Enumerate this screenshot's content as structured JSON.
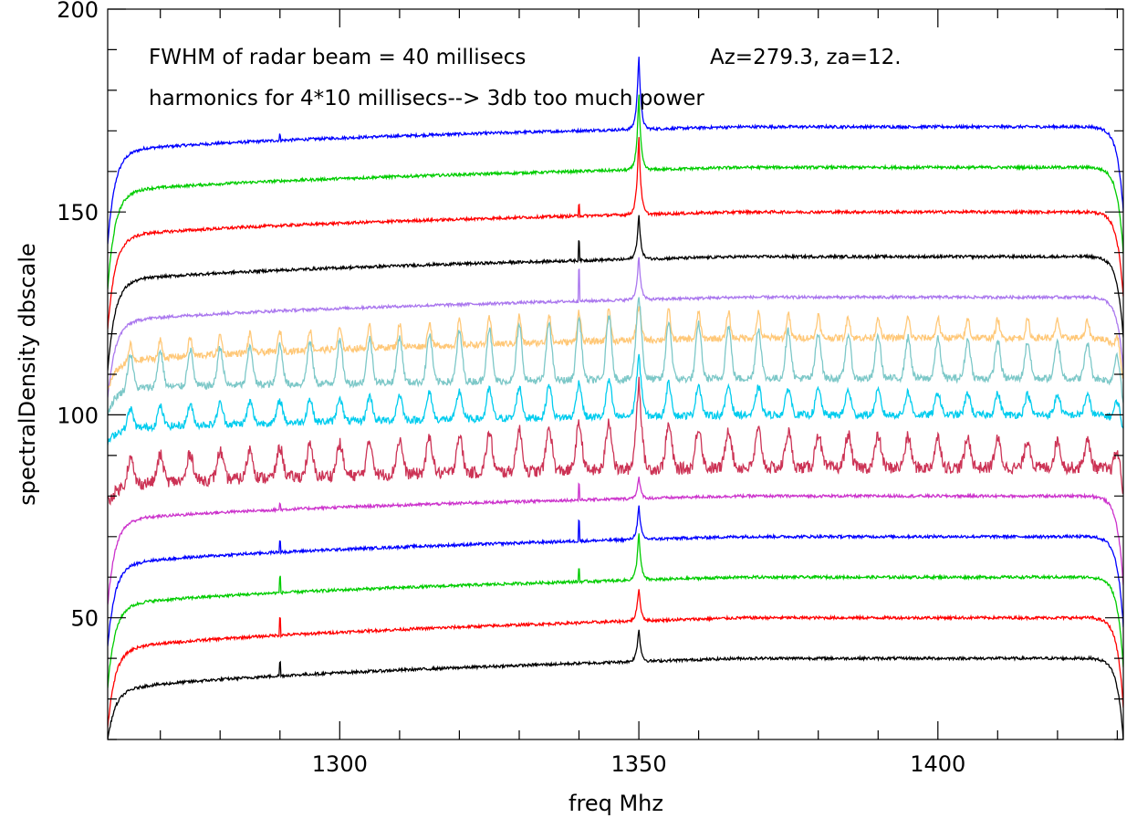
{
  "chart_data": {
    "type": "line",
    "title": "",
    "xlabel": "freq Mhz",
    "ylabel": "spectralDensity dbscale",
    "xlim": [
      1261.2,
      1431.0
    ],
    "ylim": [
      20,
      200
    ],
    "x_ticks": [
      1300,
      1350,
      1400
    ],
    "x_tick_labels": [
      "1300",
      "1350",
      "1400"
    ],
    "y_ticks": [
      50,
      100,
      150,
      200
    ],
    "y_tick_labels": [
      "50",
      "100",
      "150",
      "200"
    ],
    "x_minor_step": 10,
    "y_minor_step": 10,
    "grid": false,
    "annotations": [
      "FWHM of radar beam = 40 millisecs",
      "Az=279.3, za=12.",
      "harmonics for 4*10 millisecs--> 3db too much power"
    ],
    "series": [
      {
        "color": "#0000ff",
        "baseline_start": 164,
        "baseline_end": 171,
        "edge_low": 142,
        "edge_high": 150,
        "center_peak": 190,
        "harmonic_peak_height": 0,
        "harmonic_width": 0,
        "noise": 0.35,
        "spurs": [
          [
            1290,
            169
          ]
        ]
      },
      {
        "color": "#00cc00",
        "baseline_start": 154,
        "baseline_end": 161,
        "edge_low": 131,
        "edge_high": 140,
        "center_peak": 180,
        "harmonic_peak_height": 0,
        "harmonic_width": 0,
        "noise": 0.35,
        "spurs": []
      },
      {
        "color": "#ff0000",
        "baseline_start": 143,
        "baseline_end": 150,
        "edge_low": 121,
        "edge_high": 129,
        "center_peak": 170,
        "harmonic_peak_height": 0,
        "harmonic_width": 0,
        "noise": 0.35,
        "spurs": [
          [
            1340,
            152
          ]
        ]
      },
      {
        "color": "#000000",
        "baseline_start": 132,
        "baseline_end": 139,
        "edge_low": 111,
        "edge_high": 119,
        "center_peak": 150,
        "harmonic_peak_height": 0,
        "harmonic_width": 0,
        "noise": 0.35,
        "spurs": [
          [
            1340,
            143
          ]
        ]
      },
      {
        "color": "#aa77ee",
        "baseline_start": 122,
        "baseline_end": 129,
        "edge_low": 104,
        "edge_high": 111,
        "center_peak": 140,
        "harmonic_peak_height": 0,
        "harmonic_width": 0,
        "noise": 0.35,
        "spurs": [
          [
            1340,
            136
          ]
        ]
      },
      {
        "color": "#ffc878",
        "baseline_start": 112,
        "baseline_end": 119,
        "edge_low": 106,
        "edge_high": 109,
        "center_peak": 126,
        "harmonic_peak_height": 8,
        "harmonic_width": 0.6,
        "noise": 0.8,
        "spurs": []
      },
      {
        "color": "#7dc8c8",
        "baseline_start": 106,
        "baseline_end": 109,
        "edge_low": 100,
        "edge_high": 102,
        "center_peak": 130,
        "harmonic_peak_height": 16,
        "harmonic_width": 0.9,
        "noise": 0.9,
        "spurs": []
      },
      {
        "color": "#00ccee",
        "baseline_start": 96,
        "baseline_end": 100,
        "edge_low": 93,
        "edge_high": 96,
        "center_peak": 115,
        "harmonic_peak_height": 9,
        "harmonic_width": 0.9,
        "noise": 0.9,
        "spurs": []
      },
      {
        "color": "#cc3355",
        "baseline_start": 82,
        "baseline_end": 87,
        "edge_low": 78,
        "edge_high": 80,
        "center_peak": 110,
        "harmonic_peak_height": 12,
        "harmonic_width": 1.0,
        "noise": 1.5,
        "spurs": []
      },
      {
        "color": "#cc33cc",
        "baseline_start": 73,
        "baseline_end": 80,
        "edge_low": 53,
        "edge_high": 58,
        "center_peak": 85,
        "harmonic_peak_height": 0,
        "harmonic_width": 0,
        "noise": 0.35,
        "spurs": [
          [
            1290,
            78
          ],
          [
            1340,
            83
          ]
        ]
      },
      {
        "color": "#0000ff",
        "baseline_start": 62,
        "baseline_end": 70,
        "edge_low": 43,
        "edge_high": 48,
        "center_peak": 78,
        "harmonic_peak_height": 0,
        "harmonic_width": 0,
        "noise": 0.35,
        "spurs": [
          [
            1290,
            69
          ],
          [
            1340,
            74
          ]
        ]
      },
      {
        "color": "#00cc00",
        "baseline_start": 52,
        "baseline_end": 60,
        "edge_low": 33,
        "edge_high": 38,
        "center_peak": 72,
        "harmonic_peak_height": 0,
        "harmonic_width": 0,
        "noise": 0.35,
        "spurs": [
          [
            1290,
            60
          ],
          [
            1340,
            62
          ]
        ]
      },
      {
        "color": "#ff0000",
        "baseline_start": 41,
        "baseline_end": 50,
        "edge_low": 23,
        "edge_high": 28,
        "center_peak": 58,
        "harmonic_peak_height": 0,
        "harmonic_width": 0,
        "noise": 0.35,
        "spurs": [
          [
            1290,
            50
          ]
        ]
      },
      {
        "color": "#000000",
        "baseline_start": 31,
        "baseline_end": 40,
        "edge_low": 20,
        "edge_high": 20,
        "center_peak": 48,
        "harmonic_peak_height": 0,
        "harmonic_width": 0,
        "noise": 0.35,
        "spurs": [
          [
            1290,
            39
          ]
        ]
      }
    ]
  }
}
